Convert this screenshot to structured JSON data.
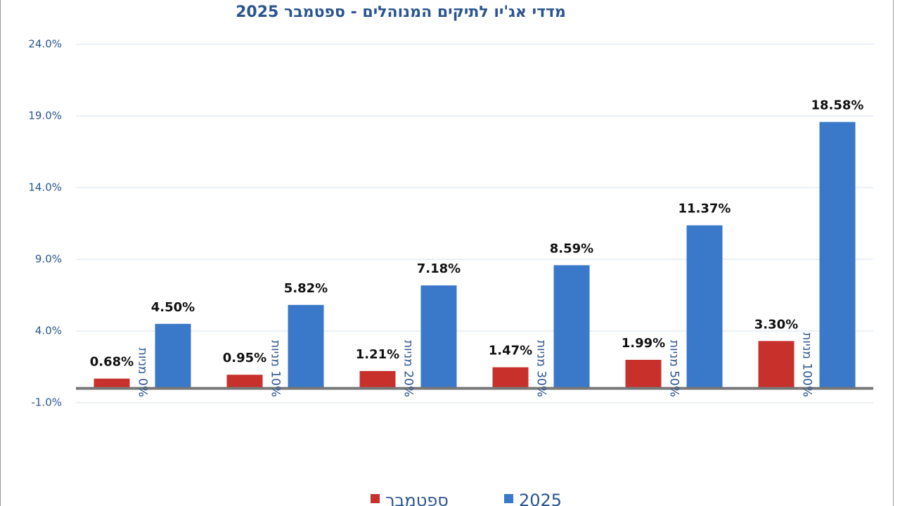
{
  "chart_data": {
    "type": "bar",
    "title": "מדדי אג'יו לתיקים המנוהלים  -  ספטמבר 2025",
    "categories": [
      "0% מניות",
      "10% מניות",
      "20% מניות",
      "30% מניות",
      "50% מניות",
      "100% מניות"
    ],
    "series": [
      {
        "name": "ספטמבר",
        "color": "#c8302c",
        "values": [
          0.68,
          0.95,
          1.21,
          1.47,
          1.99,
          3.3
        ],
        "value_labels": [
          "0.68%",
          "0.95%",
          "1.21%",
          "1.47%",
          "1.99%",
          "3.30%"
        ]
      },
      {
        "name": "2025",
        "color": "#3a78c9",
        "values": [
          4.5,
          5.82,
          7.18,
          8.59,
          11.37,
          18.58
        ],
        "value_labels": [
          "4.50%",
          "5.82%",
          "7.18%",
          "8.59%",
          "11.37%",
          "18.58%"
        ]
      }
    ],
    "ylim": [
      -1,
      24
    ],
    "yticks": [
      {
        "value": -1,
        "label": "-1.0%"
      },
      {
        "value": 4,
        "label": "4.0%"
      },
      {
        "value": 9,
        "label": "9.0%"
      },
      {
        "value": 14,
        "label": "14.0%"
      },
      {
        "value": 19,
        "label": "19.0%"
      },
      {
        "value": 24,
        "label": "24.0%"
      }
    ],
    "grid": true,
    "legend": "bottom"
  }
}
